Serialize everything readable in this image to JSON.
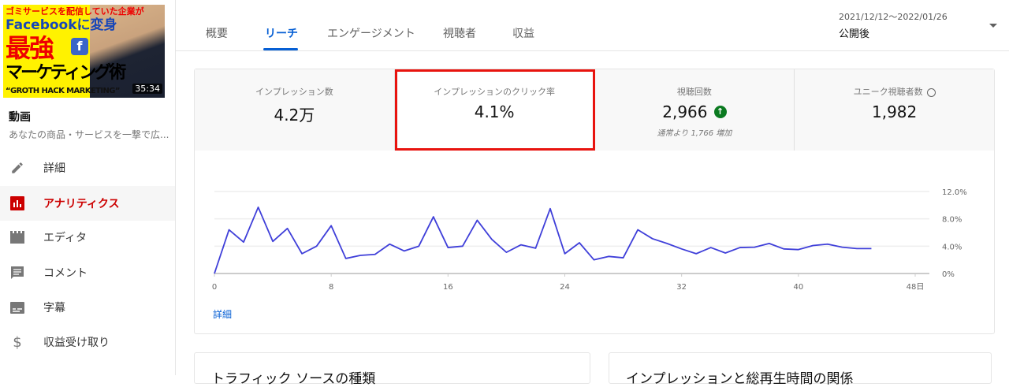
{
  "video": {
    "thumbnail_text": [
      "ゴミサービスを配信していた企業が",
      "Facebookに変身",
      "最強",
      "マーケティング術",
      "“GROTH HACK MARKETING”"
    ],
    "duration": "35:34",
    "title": "動画",
    "description": "あなたの商品・サービスを一撃で広..."
  },
  "sidebar": {
    "items": [
      {
        "label": "詳細",
        "icon": "pencil-icon"
      },
      {
        "label": "アナリティクス",
        "icon": "analytics-icon",
        "active": true
      },
      {
        "label": "エディタ",
        "icon": "clapper-icon"
      },
      {
        "label": "コメント",
        "icon": "comment-icon"
      },
      {
        "label": "字幕",
        "icon": "subtitles-icon"
      },
      {
        "label": "収益受け取り",
        "icon": "dollar-icon"
      }
    ]
  },
  "tabs": [
    {
      "label": "概要"
    },
    {
      "label": "リーチ",
      "active": true
    },
    {
      "label": "エンゲージメント"
    },
    {
      "label": "視聴者"
    },
    {
      "label": "収益"
    }
  ],
  "date": {
    "range": "2021/12/12〜2022/01/26",
    "label": "公開後"
  },
  "stats": [
    {
      "title": "インプレッション数",
      "value": "4.2万"
    },
    {
      "title": "インプレッションのクリック率",
      "value": "4.1%",
      "highlighted": true
    },
    {
      "title": "視聴回数",
      "value": "2,966",
      "sub": "通常より 1,766 増加",
      "trend": "up"
    },
    {
      "title": "ユニーク視聴者数",
      "value": "1,982"
    }
  ],
  "more_link": "詳細",
  "bottom_cards": [
    "トラフィック ソースの種類",
    "インプレッションと総再生時間の関係"
  ],
  "colors": {
    "accent": "#065fd4",
    "line": "#3f3fd9",
    "highlight": "#e8140f",
    "active_nav": "#cc0000",
    "up": "#0b7a20"
  },
  "chart_data": {
    "type": "line",
    "x_ticks": [
      "0",
      "8",
      "16",
      "24",
      "32",
      "40",
      "48日"
    ],
    "y_ticks": [
      "0%",
      "4.0%",
      "8.0%",
      "12.0%"
    ],
    "xlim": [
      0,
      48
    ],
    "ylim": [
      0,
      12
    ],
    "grid": true,
    "x": [
      0,
      1,
      2,
      3,
      4,
      5,
      6,
      7,
      8,
      9,
      10,
      11,
      12,
      13,
      14,
      15,
      16,
      17,
      18,
      19,
      20,
      21,
      22,
      23,
      24,
      25,
      26,
      27,
      28,
      29,
      30,
      31,
      32,
      33,
      34,
      35,
      36,
      37,
      38,
      39,
      40,
      41,
      42,
      43,
      44,
      45
    ],
    "y": [
      0,
      6.4,
      4.6,
      9.7,
      4.7,
      6.6,
      2.9,
      4.0,
      7.0,
      2.2,
      2.65,
      2.8,
      4.3,
      3.3,
      4.0,
      8.3,
      3.8,
      4.0,
      7.8,
      5.0,
      3.1,
      4.2,
      3.7,
      9.5,
      2.9,
      4.5,
      2.0,
      2.5,
      2.3,
      6.4,
      5.1,
      4.4,
      3.6,
      2.9,
      3.8,
      3.0,
      3.8,
      3.85,
      4.4,
      3.6,
      3.5,
      4.1,
      4.3,
      3.85,
      3.65,
      3.65
    ]
  }
}
